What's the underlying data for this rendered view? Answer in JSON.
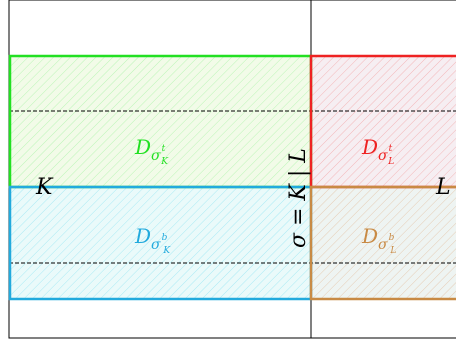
{
  "labels": {
    "K": "K",
    "L": "L",
    "sigma": "σ = K | L"
  },
  "regions": [
    {
      "id": "d-k-top",
      "base": "D",
      "sub": "σ",
      "supsup": "t",
      "subsub": "K",
      "color": "#22e022"
    },
    {
      "id": "d-k-bottom",
      "base": "D",
      "sub": "σ",
      "supsup": "b",
      "subsub": "K",
      "color": "#22aadd"
    },
    {
      "id": "d-l-top",
      "base": "D",
      "sub": "σ",
      "supsup": "t",
      "subsub": "L",
      "color": "#ee2222"
    },
    {
      "id": "d-l-bottom",
      "base": "D",
      "sub": "σ",
      "supsup": "b",
      "subsub": "L",
      "color": "#c88a44"
    }
  ],
  "colors": {
    "green": "#22e022",
    "cyan": "#22aadd",
    "red": "#ee2222",
    "brown": "#c88a44"
  }
}
